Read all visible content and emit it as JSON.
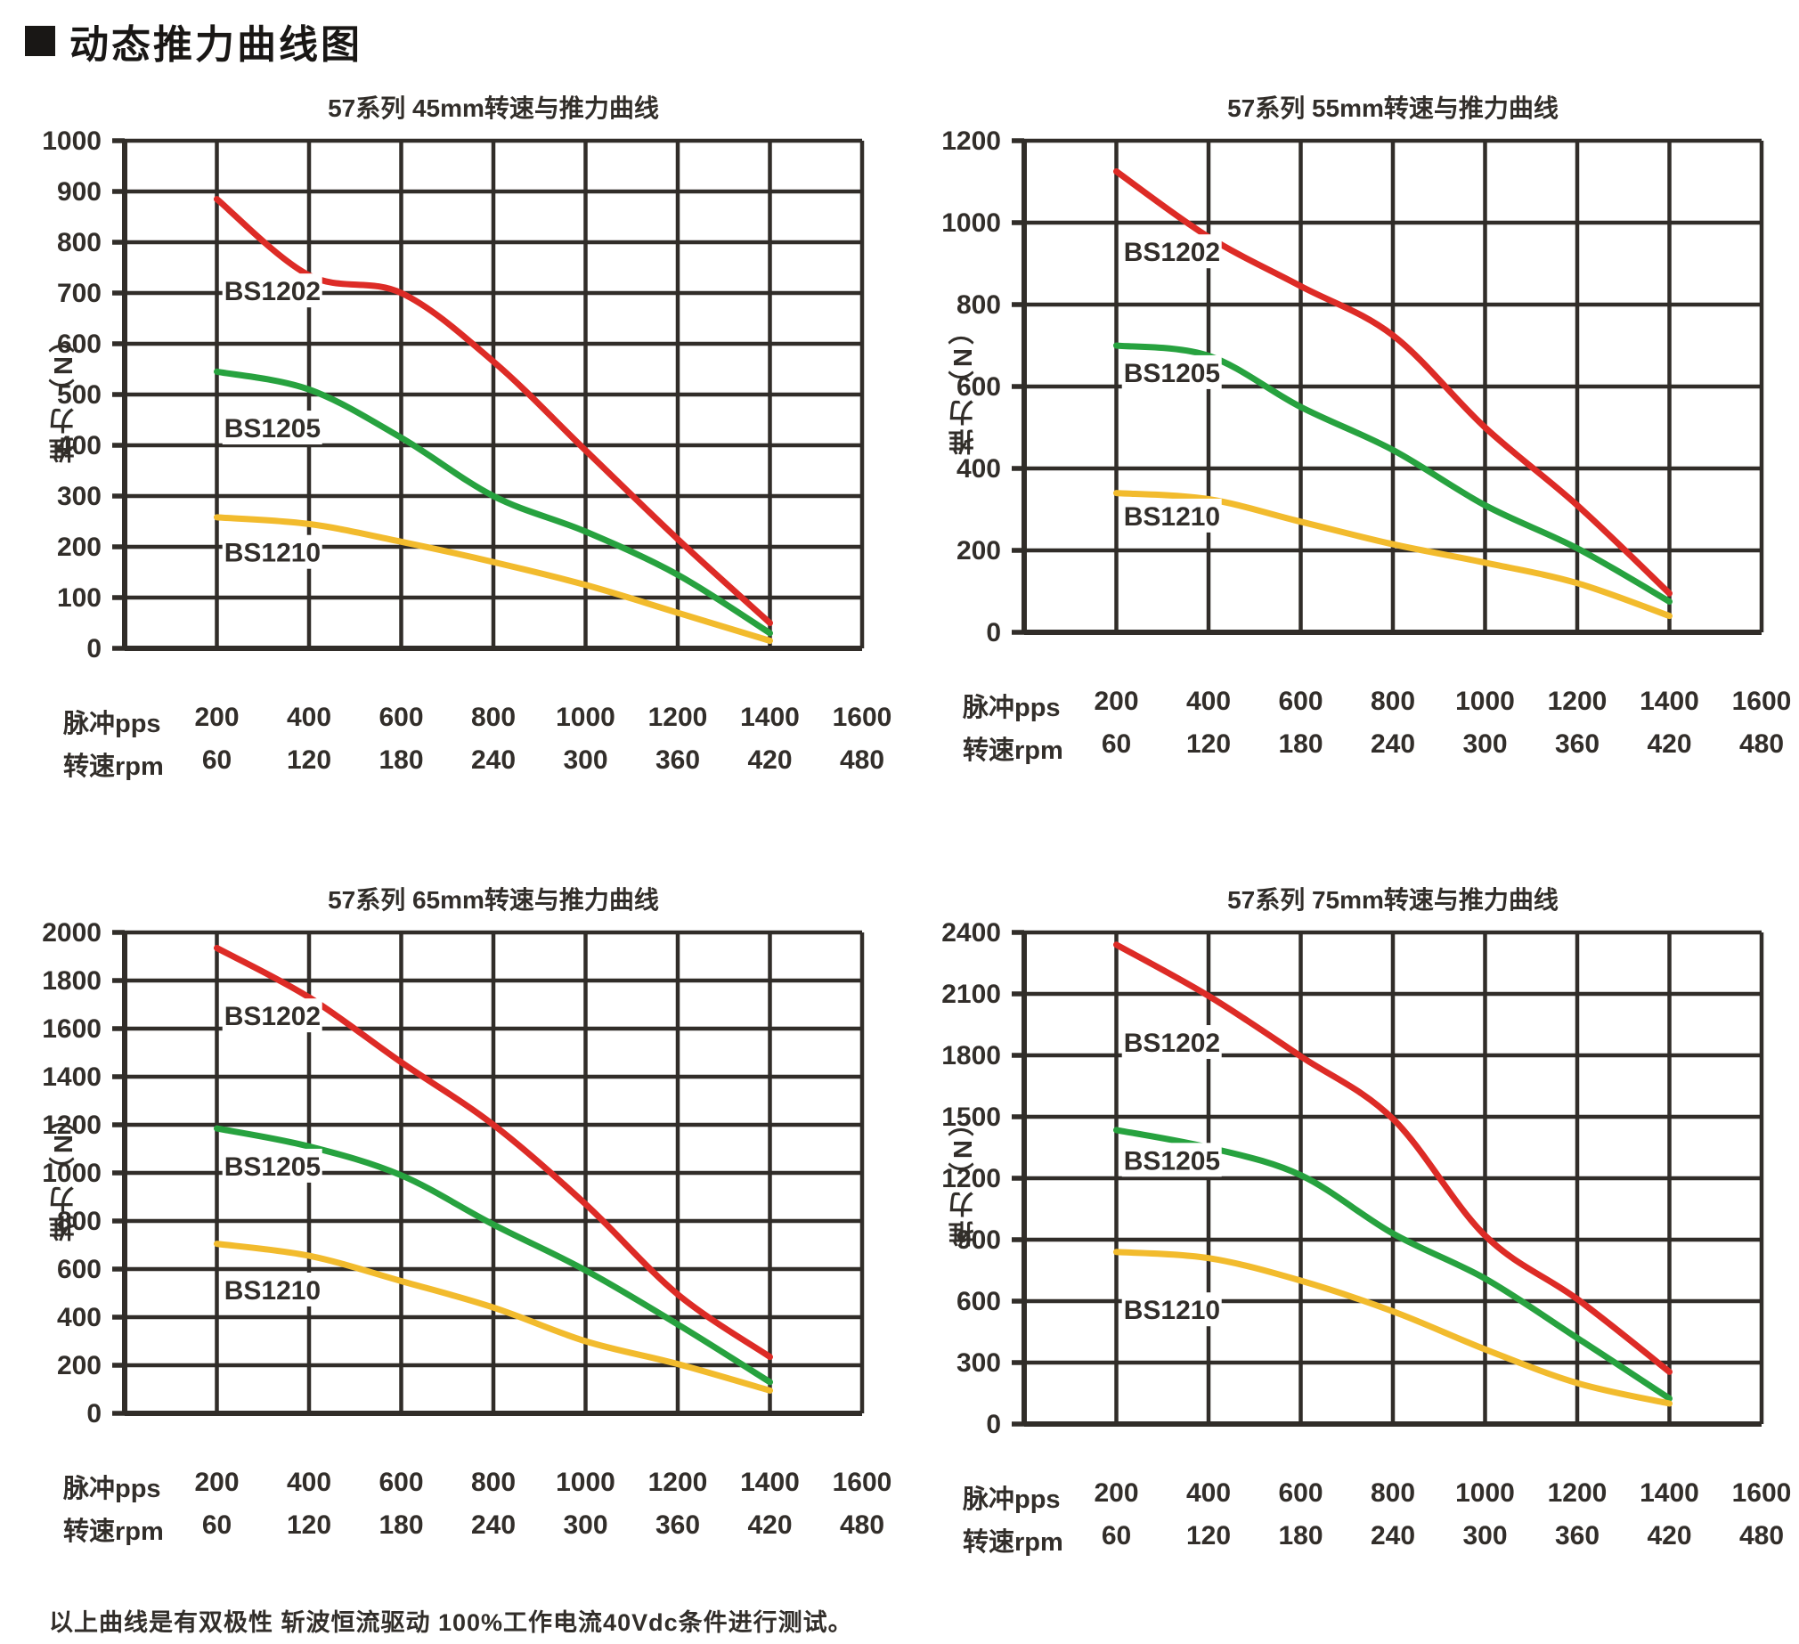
{
  "page": {
    "header_title": "动态推力曲线图",
    "footer_note": "以上曲线是有双极性 斩波恒流驱动 100%工作电流40Vdc条件进行测试。"
  },
  "colors": {
    "bs1202": "#dd2b26",
    "bs1205": "#27a23f",
    "bs1210": "#f2bb2d",
    "grid": "#312d29",
    "text": "#322e2a"
  },
  "axis": {
    "y_label": "推力（N）",
    "x_row1_label": "脉冲pps",
    "x_row2_label": "转速rpm",
    "x_pps": [
      200,
      400,
      600,
      800,
      1000,
      1200,
      1400,
      1600
    ],
    "x_rpm": [
      60,
      120,
      180,
      240,
      300,
      360,
      420,
      480
    ]
  },
  "chart_data": [
    {
      "type": "line",
      "title": "57系列 45mm转速与推力曲线",
      "xlabel": "脉冲pps / 转速rpm",
      "ylabel": "推力（N）",
      "ylim": [
        0,
        1000
      ],
      "ystep": 100,
      "x": [
        200,
        400,
        600,
        800,
        1000,
        1200,
        1400
      ],
      "series": [
        {
          "name": "BS1202",
          "color_key": "bs1202",
          "values": [
            885,
            735,
            700,
            565,
            390,
            215,
            50
          ],
          "label_at": {
            "x": 212,
            "y": 705
          }
        },
        {
          "name": "BS1205",
          "color_key": "bs1205",
          "values": [
            545,
            510,
            415,
            300,
            230,
            145,
            30
          ],
          "label_at": {
            "x": 212,
            "y": 435
          }
        },
        {
          "name": "BS1210",
          "color_key": "bs1210",
          "values": [
            258,
            245,
            210,
            170,
            125,
            70,
            15
          ],
          "label_at": {
            "x": 212,
            "y": 190
          }
        }
      ]
    },
    {
      "type": "line",
      "title": "57系列 55mm转速与推力曲线",
      "xlabel": "脉冲pps / 转速rpm",
      "ylabel": "推力（N）",
      "ylim": [
        0,
        1200
      ],
      "ystep": 200,
      "x": [
        200,
        400,
        600,
        800,
        1000,
        1200,
        1400
      ],
      "series": [
        {
          "name": "BS1202",
          "color_key": "bs1202",
          "values": [
            1125,
            965,
            845,
            725,
            500,
            310,
            95
          ],
          "label_at": {
            "x": 212,
            "y": 930
          }
        },
        {
          "name": "BS1205",
          "color_key": "bs1205",
          "values": [
            700,
            675,
            550,
            445,
            310,
            205,
            75
          ],
          "label_at": {
            "x": 212,
            "y": 635
          }
        },
        {
          "name": "BS1210",
          "color_key": "bs1210",
          "values": [
            340,
            325,
            270,
            215,
            170,
            120,
            40
          ],
          "label_at": {
            "x": 212,
            "y": 285
          }
        }
      ]
    },
    {
      "type": "line",
      "title": "57系列 65mm转速与推力曲线",
      "xlabel": "脉冲pps / 转速rpm",
      "ylabel": "推力（N）",
      "ylim": [
        0,
        2000
      ],
      "ystep": 200,
      "x": [
        200,
        400,
        600,
        800,
        1000,
        1200,
        1400
      ],
      "series": [
        {
          "name": "BS1202",
          "color_key": "bs1202",
          "values": [
            1935,
            1730,
            1460,
            1200,
            870,
            495,
            235
          ],
          "label_at": {
            "x": 212,
            "y": 1655
          }
        },
        {
          "name": "BS1205",
          "color_key": "bs1205",
          "values": [
            1185,
            1110,
            990,
            785,
            595,
            370,
            130
          ],
          "label_at": {
            "x": 212,
            "y": 1030
          }
        },
        {
          "name": "BS1210",
          "color_key": "bs1210",
          "values": [
            705,
            655,
            550,
            440,
            300,
            205,
            95
          ],
          "label_at": {
            "x": 212,
            "y": 515
          }
        }
      ]
    },
    {
      "type": "line",
      "title": "57系列 75mm转速与推力曲线",
      "xlabel": "脉冲pps / 转速rpm",
      "ylabel": "推力（N）",
      "ylim": [
        0,
        2400
      ],
      "ystep": 300,
      "x": [
        200,
        400,
        600,
        800,
        1000,
        1200,
        1400
      ],
      "series": [
        {
          "name": "BS1202",
          "color_key": "bs1202",
          "values": [
            2340,
            2090,
            1795,
            1490,
            920,
            610,
            255
          ],
          "label_at": {
            "x": 212,
            "y": 1865
          }
        },
        {
          "name": "BS1205",
          "color_key": "bs1205",
          "values": [
            1435,
            1350,
            1215,
            930,
            710,
            420,
            125
          ],
          "label_at": {
            "x": 212,
            "y": 1290
          }
        },
        {
          "name": "BS1210",
          "color_key": "bs1210",
          "values": [
            840,
            810,
            700,
            550,
            365,
            200,
            100
          ],
          "label_at": {
            "x": 212,
            "y": 560
          }
        }
      ]
    }
  ]
}
